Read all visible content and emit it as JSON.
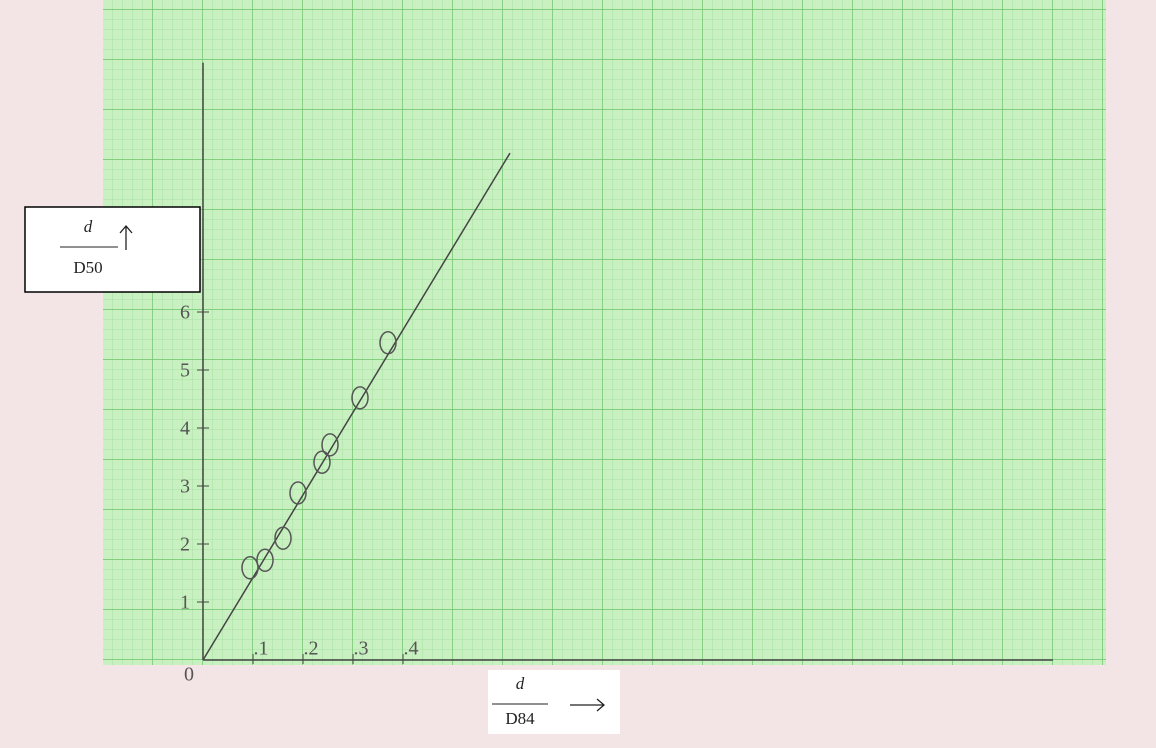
{
  "chart_data": {
    "type": "scatter",
    "x_label": {
      "numerator": "d",
      "denominator": "D84"
    },
    "y_label": {
      "numerator": "d",
      "denominator": "D50"
    },
    "x": [
      0.094,
      0.124,
      0.16,
      0.19,
      0.238,
      0.254,
      0.314,
      0.37
    ],
    "values": [
      1.59,
      1.72,
      2.1,
      2.88,
      3.41,
      3.71,
      4.52,
      5.47
    ],
    "color": "#555555",
    "fit_line": {
      "x": [
        0,
        0.614
      ],
      "values": [
        0,
        8.74
      ]
    },
    "xlim": [
      0,
      1.7
    ],
    "ylim": [
      0,
      10.3
    ],
    "xticks": [
      0,
      {
        "value": 0.1,
        "label": ".1"
      },
      {
        "value": 0.2,
        "label": ".2"
      },
      {
        "value": 0.3,
        "label": ".3"
      },
      {
        "value": 0.4,
        "label": ".4"
      }
    ],
    "yticks": [
      1,
      2,
      3,
      4,
      5,
      6
    ],
    "grid": true
  }
}
